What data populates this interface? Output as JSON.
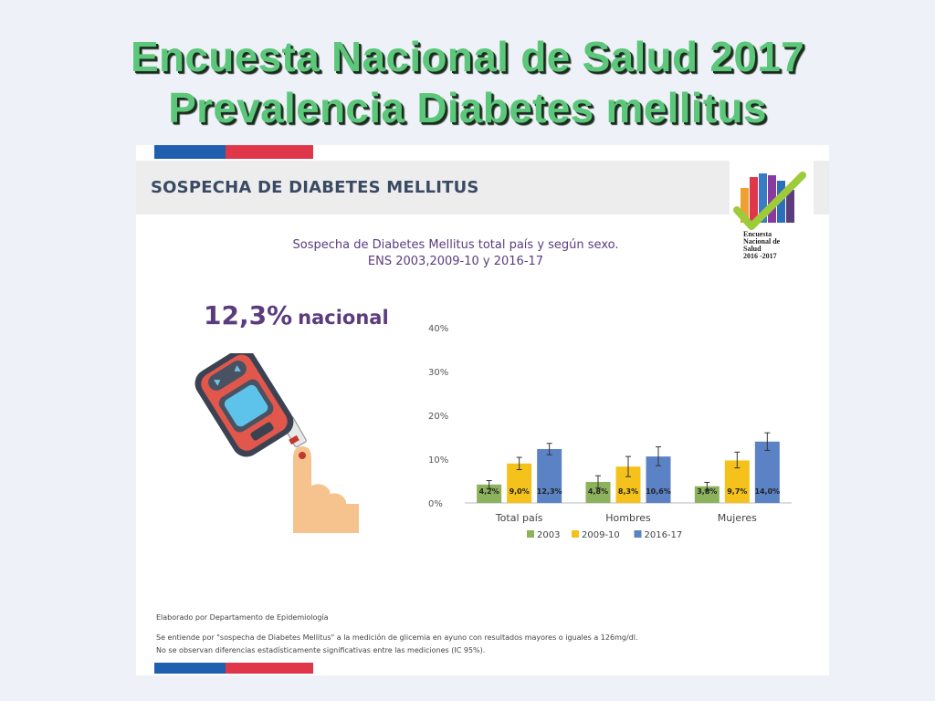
{
  "slide": {
    "title_line1": "Encuesta Nacional de Salud 2017",
    "title_line2": "Prevalencia Diabetes mellitus"
  },
  "card": {
    "header_title": "SOSPECHA DE DIABETES MELLITUS",
    "logo": {
      "line1": "Encuesta",
      "line2": "Nacional de",
      "line3": "Salud",
      "line4": "2016 -2017"
    },
    "chart_title_line1": "Sospecha de Diabetes Mellitus total país y según sexo.",
    "chart_title_line2": "ENS 2003,2009-10 y 2016-17",
    "stat_value": "12,3%",
    "stat_label": "nacional",
    "footnote_source": "Elaborado por Departamento de Epidemiología",
    "footnote_def": "Se entiende por \"sospecha de Diabetes Mellitus\" a la medición de glicemia en ayuno con resultados mayores o iguales a 126mg/dl.",
    "footnote_sig": "No se observan diferencias estadísticamente significativas entre las mediciones (IC 95%)."
  },
  "colors": {
    "title_green": "#5cc77a",
    "series_2003": "#8db25c",
    "series_2009": "#f5c21b",
    "series_2016": "#5b82c4",
    "flag_blue": "#1f5fae",
    "flag_red": "#e0364a",
    "purple_text": "#5b3c7e"
  },
  "chart_data": {
    "type": "bar",
    "categories": [
      "Total país",
      "Hombres",
      "Mujeres"
    ],
    "series": [
      {
        "name": "2003",
        "values": [
          4.2,
          4.8,
          3.8
        ],
        "labels": [
          "4,2%",
          "4,8%",
          "3,8%"
        ],
        "err_low": [
          3.3,
          3.4,
          2.9
        ],
        "err_high": [
          5.1,
          6.2,
          4.7
        ]
      },
      {
        "name": "2009-10",
        "values": [
          9.0,
          8.3,
          9.7
        ],
        "labels": [
          "9,0%",
          "8,3%",
          "9,7%"
        ],
        "err_low": [
          7.6,
          6.0,
          8.0
        ],
        "err_high": [
          10.4,
          10.6,
          11.6
        ]
      },
      {
        "name": "2016-17",
        "values": [
          12.3,
          10.6,
          14.0
        ],
        "labels": [
          "12,3%",
          "10,6%",
          "14,0%"
        ],
        "err_low": [
          11.0,
          8.5,
          12.0
        ],
        "err_high": [
          13.6,
          12.8,
          16.0
        ]
      }
    ],
    "ylim": [
      0,
      40
    ],
    "yticks": [
      0,
      10,
      20,
      30,
      40
    ],
    "ytick_labels": [
      "0%",
      "10%",
      "20%",
      "30%",
      "40%"
    ],
    "legend_position": "bottom",
    "grid": false
  }
}
